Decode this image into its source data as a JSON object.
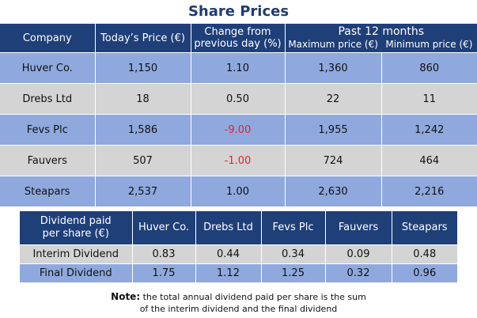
{
  "title": "Share Prices",
  "share_table": {
    "headers": {
      "company": "Company",
      "today_price": "Today’s Price (€)",
      "change_line1": "Change from",
      "change_line2": "previous day (%)",
      "past": "Past 12 months",
      "max": "Maximum price (€)",
      "min": "Minimum price (€)"
    },
    "rows": [
      {
        "company": "Huver Co.",
        "price": "1,150",
        "change": "1.10",
        "max": "1,360",
        "min": "860"
      },
      {
        "company": "Drebs Ltd",
        "price": "18",
        "change": "0.50",
        "max": "22",
        "min": "11"
      },
      {
        "company": "Fevs Plc",
        "price": "1,586",
        "change": "-9.00",
        "max": "1,955",
        "min": "1,242"
      },
      {
        "company": "Fauvers",
        "price": "507",
        "change": "-1.00",
        "max": "724",
        "min": "464"
      },
      {
        "company": "Steapars",
        "price": "2,537",
        "change": "1.00",
        "max": "2,630",
        "min": "2,216"
      }
    ]
  },
  "dividend_table": {
    "header_line1": "Dividend paid",
    "header_line2": "per share (€)",
    "companies": [
      "Huver Co.",
      "Drebs Ltd",
      "Fevs Plc",
      "Fauvers",
      "Steapars"
    ],
    "rows": [
      {
        "label": "Interim Dividend",
        "values": [
          "0.83",
          "0.44",
          "0.34",
          "0.09",
          "0.48"
        ]
      },
      {
        "label": "Final Dividend",
        "values": [
          "1.75",
          "1.12",
          "1.25",
          "0.32",
          "0.96"
        ]
      }
    ]
  },
  "note": {
    "label": "Note:",
    "line1": " the total annual dividend paid per share is the sum",
    "line2": "of the interim dividend and the final dividend"
  },
  "colors": {
    "header_bg": "#1f3f78",
    "row_blue": "#8fa9de",
    "row_grey": "#d4d4d4",
    "negative": "#e8202a"
  }
}
